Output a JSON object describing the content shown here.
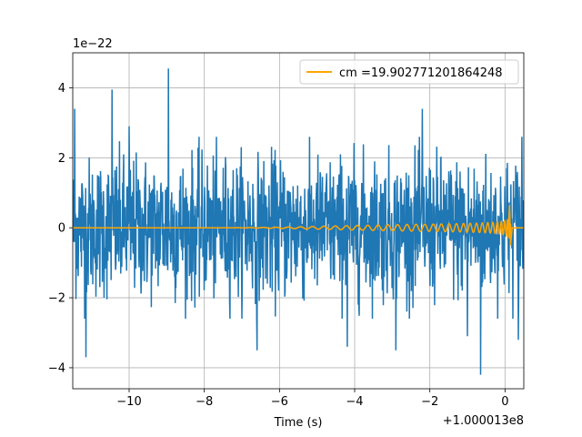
{
  "chart_data": {
    "type": "line",
    "title": "",
    "xlabel": "Time (s)",
    "ylabel": "",
    "x_offset_text": "+1.000013e8",
    "y_offset_text": "1e−22",
    "xlim": [
      -11.5,
      0.5
    ],
    "ylim": [
      -4.6,
      5.0
    ],
    "x_ticks": [
      -10,
      -8,
      -6,
      -4,
      -2,
      0
    ],
    "x_tick_labels": [
      "−10",
      "−8",
      "−6",
      "−4",
      "−2",
      "0"
    ],
    "y_ticks": [
      -4,
      -2,
      0,
      2,
      4
    ],
    "y_tick_labels": [
      "−4",
      "−2",
      "0",
      "2",
      "4"
    ],
    "grid": true,
    "legend_position": "upper right",
    "series": [
      {
        "name": "",
        "color": "#1f77b4",
        "kind": "noise",
        "x_range": [
          -11.5,
          0.5
        ],
        "typical_envelope": [
          -1.8,
          1.8
        ],
        "peaks": [
          {
            "x": -11.45,
            "y": 3.4
          },
          {
            "x": -10.45,
            "y": 3.95
          },
          {
            "x": -8.95,
            "y": 4.55
          },
          {
            "x": -10.0,
            "y": 2.9
          },
          {
            "x": -2.2,
            "y": 3.4
          },
          {
            "x": -1.0,
            "y": 3.1
          },
          {
            "x": 0.45,
            "y": 2.6
          }
        ],
        "troughs": [
          {
            "x": -11.15,
            "y": -3.7
          },
          {
            "x": -6.6,
            "y": -3.5
          },
          {
            "x": -4.2,
            "y": -3.4
          },
          {
            "x": -2.9,
            "y": -3.5
          },
          {
            "x": -1.0,
            "y": -3.1
          },
          {
            "x": -0.65,
            "y": -4.2
          },
          {
            "x": 0.35,
            "y": -3.2
          }
        ]
      },
      {
        "name": "cm =19.902771201864248",
        "color": "#ffa500",
        "kind": "chirp",
        "x_range": [
          -11.5,
          0.5
        ],
        "merger_time": 0.15,
        "max_amplitude": 0.65,
        "min_amplitude": -0.5
      }
    ]
  }
}
